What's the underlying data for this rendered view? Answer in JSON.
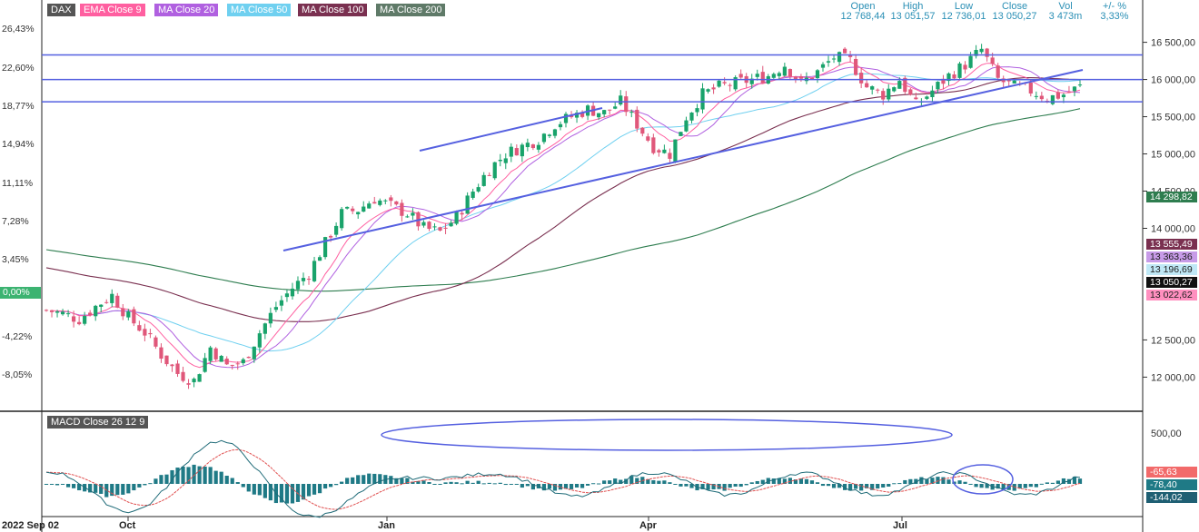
{
  "index_name": "DAX",
  "legend": [
    {
      "label": "EMA Close 9",
      "color": "#ff5fa0"
    },
    {
      "label": "MA Close 20",
      "color": "#b060e0"
    },
    {
      "label": "MA Close 50",
      "color": "#6fd0f0"
    },
    {
      "label": "MA Close 100",
      "color": "#7a3050"
    },
    {
      "label": "MA Close 200",
      "color": "#2e7d4f"
    }
  ],
  "header": {
    "labels": [
      "Open",
      "High",
      "Low",
      "Close",
      "Vol",
      "+/- %"
    ],
    "values": [
      "12 768,44",
      "13 051,57",
      "12 736,01",
      "13 050,27",
      "3 473m",
      "3,33%"
    ]
  },
  "chart_data": [
    {
      "type": "candlestick",
      "title": "DAX",
      "x_tick_labels": [
        "2022 Sep 02",
        "Oct",
        "Jan",
        "Apr",
        "Jul"
      ],
      "y_price_ticks": [
        "16 500,00",
        "16 000,00",
        "15 500,00",
        "15 000,00",
        "14 500,00",
        "14 000,00",
        "12 500,00",
        "12 000,00"
      ],
      "y_pct_ticks": [
        "26,43%",
        "22,60%",
        "18,77%",
        "14,94%",
        "11,11%",
        "7,28%",
        "3,45%",
        "-4,22%",
        "-8,05%"
      ],
      "zero_pct_label": "0,00%",
      "ylim": [
        11700,
        16800
      ],
      "close_path": [
        12900,
        12850,
        12780,
        12950,
        13100,
        12800,
        12600,
        12300,
        12050,
        11950,
        12400,
        12150,
        12200,
        12600,
        12950,
        13200,
        13400,
        13800,
        14200,
        14250,
        14400,
        14300,
        14200,
        14000,
        13950,
        14150,
        14500,
        14800,
        15000,
        15100,
        15200,
        15400,
        15500,
        15600,
        15550,
        15700,
        15400,
        15100,
        15000,
        15500,
        15800,
        15900,
        15950,
        16000,
        16050,
        16200,
        15950,
        16100,
        16300,
        16250,
        15900,
        15800,
        16000,
        15650,
        15850,
        16050,
        16200,
        16400,
        16000,
        15900,
        15850,
        15750,
        15800,
        15900
      ],
      "open": 12768.44,
      "high": 13051.57,
      "low": 12736.01,
      "close": 13050.27,
      "volume": "3 473m",
      "change_pct": 3.33,
      "series": [
        {
          "name": "EMA Close 9",
          "last": "13 022,62"
        },
        {
          "name": "MA Close 20",
          "last": "13 363,36"
        },
        {
          "name": "MA Close 50",
          "last": "13 196,69"
        },
        {
          "name": "MA Close 100",
          "last": "13 555,49"
        },
        {
          "name": "MA Close 200",
          "last": "14 298,82"
        }
      ],
      "horizontal_levels": [
        16330,
        16000,
        15700
      ],
      "trendlines": [
        {
          "from": [
            "Nov",
            13950
          ],
          "to": [
            "Jul end",
            15900
          ]
        },
        {
          "from": [
            "Jan",
            14950
          ],
          "to": [
            "Mar",
            15450
          ]
        }
      ],
      "last_price_label": "13 050,27"
    },
    {
      "type": "line",
      "title": "MACD Close 26 12 9",
      "y_tick_labels": [
        "500,00"
      ],
      "values_right": [
        "-65,63",
        "-78,40",
        "-144,02"
      ]
    }
  ]
}
